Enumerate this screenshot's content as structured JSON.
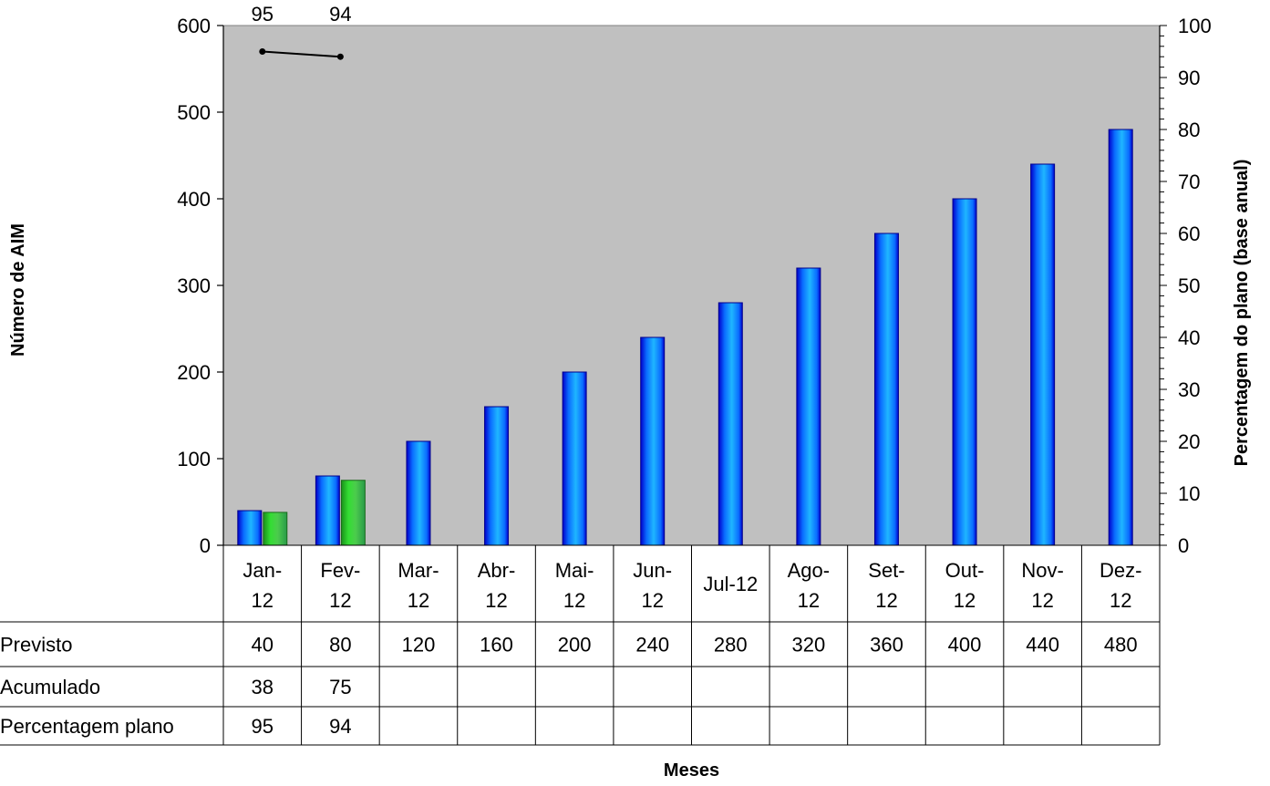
{
  "chart_data": {
    "type": "bar",
    "categories": [
      [
        "Jan-",
        "12"
      ],
      [
        "Fev-",
        "12"
      ],
      [
        "Mar-",
        "12"
      ],
      [
        "Abr-",
        "12"
      ],
      [
        "Mai-",
        "12"
      ],
      [
        "Jun-",
        "12"
      ],
      [
        "Jul-12"
      ],
      [
        "Ago-",
        "12"
      ],
      [
        "Set-",
        "12"
      ],
      [
        "Out-",
        "12"
      ],
      [
        "Nov-",
        "12"
      ],
      [
        "Dez-",
        "12"
      ]
    ],
    "series": [
      {
        "name": "Previsto",
        "kind": "bar",
        "axis": "left",
        "color": "#1e90ff",
        "values": [
          40,
          80,
          120,
          160,
          200,
          240,
          280,
          320,
          360,
          400,
          440,
          480
        ]
      },
      {
        "name": "Acumulado",
        "kind": "bar",
        "axis": "left",
        "color": "#33cc33",
        "values": [
          38,
          75,
          null,
          null,
          null,
          null,
          null,
          null,
          null,
          null,
          null,
          null
        ]
      },
      {
        "name": "Percentagem plano",
        "kind": "line",
        "axis": "right",
        "color": "#000000",
        "values": [
          95,
          94,
          null,
          null,
          null,
          null,
          null,
          null,
          null,
          null,
          null,
          null
        ]
      }
    ],
    "table_rows": [
      {
        "label": "Previsto",
        "values": [
          "40",
          "80",
          "120",
          "160",
          "200",
          "240",
          "280",
          "320",
          "360",
          "400",
          "440",
          "480"
        ]
      },
      {
        "label": "Acumulado",
        "values": [
          "38",
          "75",
          "",
          "",
          "",
          "",
          "",
          "",
          "",
          "",
          "",
          ""
        ]
      },
      {
        "label": "Percentagem plano",
        "values": [
          "95",
          "94",
          "",
          "",
          "",
          "",
          "",
          "",
          "",
          "",
          "",
          ""
        ]
      }
    ],
    "y_left": {
      "label": "Número de AIM",
      "min": 0,
      "max": 600,
      "ticks": [
        0,
        100,
        200,
        300,
        400,
        500,
        600
      ]
    },
    "y_right": {
      "label": "Percentagem do plano (base anual)",
      "min": 0,
      "max": 100,
      "ticks": [
        0,
        10,
        20,
        30,
        40,
        50,
        60,
        70,
        80,
        90,
        100
      ]
    },
    "xlabel": "Meses",
    "plot_background": "#c0c0c0",
    "grid": false
  }
}
